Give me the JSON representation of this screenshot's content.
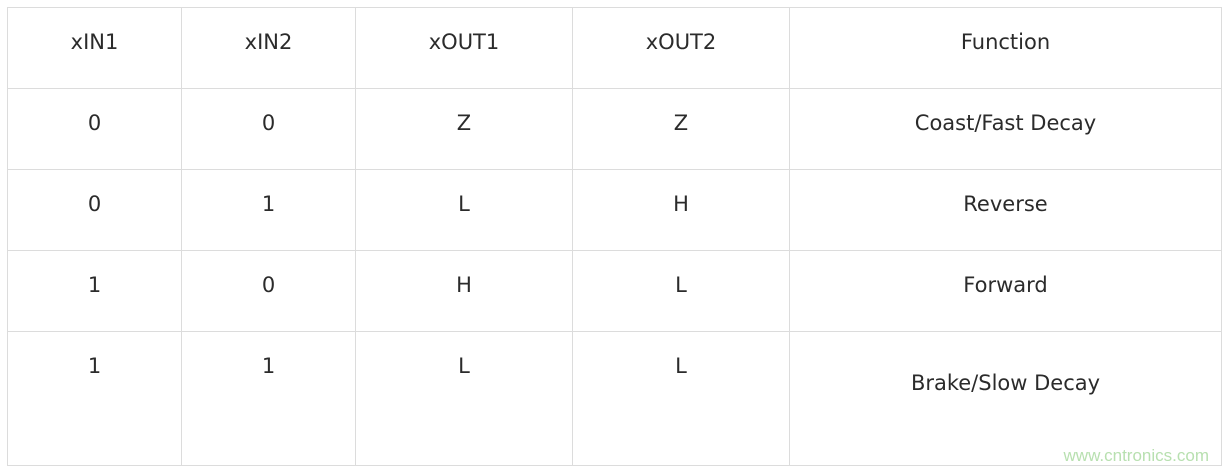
{
  "table": {
    "headers": [
      "xIN1",
      "xIN2",
      "xOUT1",
      "xOUT2",
      "Function"
    ],
    "rows": [
      [
        "0",
        "0",
        "Z",
        "Z",
        "Coast/Fast Decay"
      ],
      [
        "0",
        "1",
        "L",
        "H",
        "Reverse"
      ],
      [
        "1",
        "0",
        "H",
        "L",
        "Forward"
      ],
      [
        "1",
        "1",
        "L",
        "L",
        "Brake/Slow Decay"
      ]
    ]
  },
  "watermark": "www.cntronics.com"
}
